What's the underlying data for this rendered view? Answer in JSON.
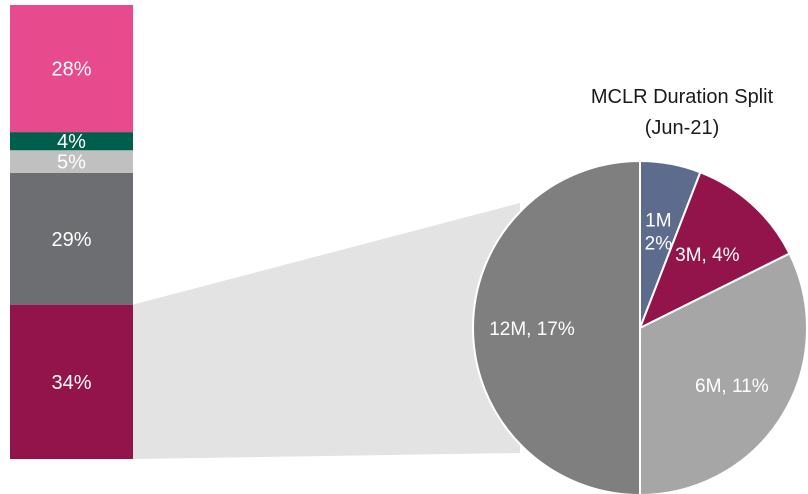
{
  "chart_data": [
    {
      "type": "bar",
      "stacked": true,
      "title": "",
      "segments": [
        {
          "value": 34,
          "label": "34%",
          "color": "#93144a"
        },
        {
          "value": 29,
          "label": "29%",
          "color": "#6d6e71"
        },
        {
          "value": 5,
          "label": "5%",
          "color": "#c0c0c0"
        },
        {
          "value": 4,
          "label": "4%",
          "color": "#005e4d"
        },
        {
          "value": 28,
          "label": "28%",
          "color": "#e84a8e"
        }
      ]
    },
    {
      "type": "pie",
      "title": "MCLR Duration Split",
      "subtitle": "(Jun-21)",
      "slices": [
        {
          "value": 2,
          "label_line1": "1M",
          "label_line2": "2%",
          "color": "#5d6b8c"
        },
        {
          "value": 4,
          "label_line1": "3M, 4%",
          "label_line2": "",
          "color": "#93144a"
        },
        {
          "value": 11,
          "label_line1": "6M, 11%",
          "label_line2": "",
          "color": "#a6a6a6"
        },
        {
          "value": 17,
          "label_line1": "12M, 17%",
          "label_line2": "",
          "color": "#7f7f7f"
        }
      ],
      "connector_color": "#e3e3e3"
    }
  ]
}
